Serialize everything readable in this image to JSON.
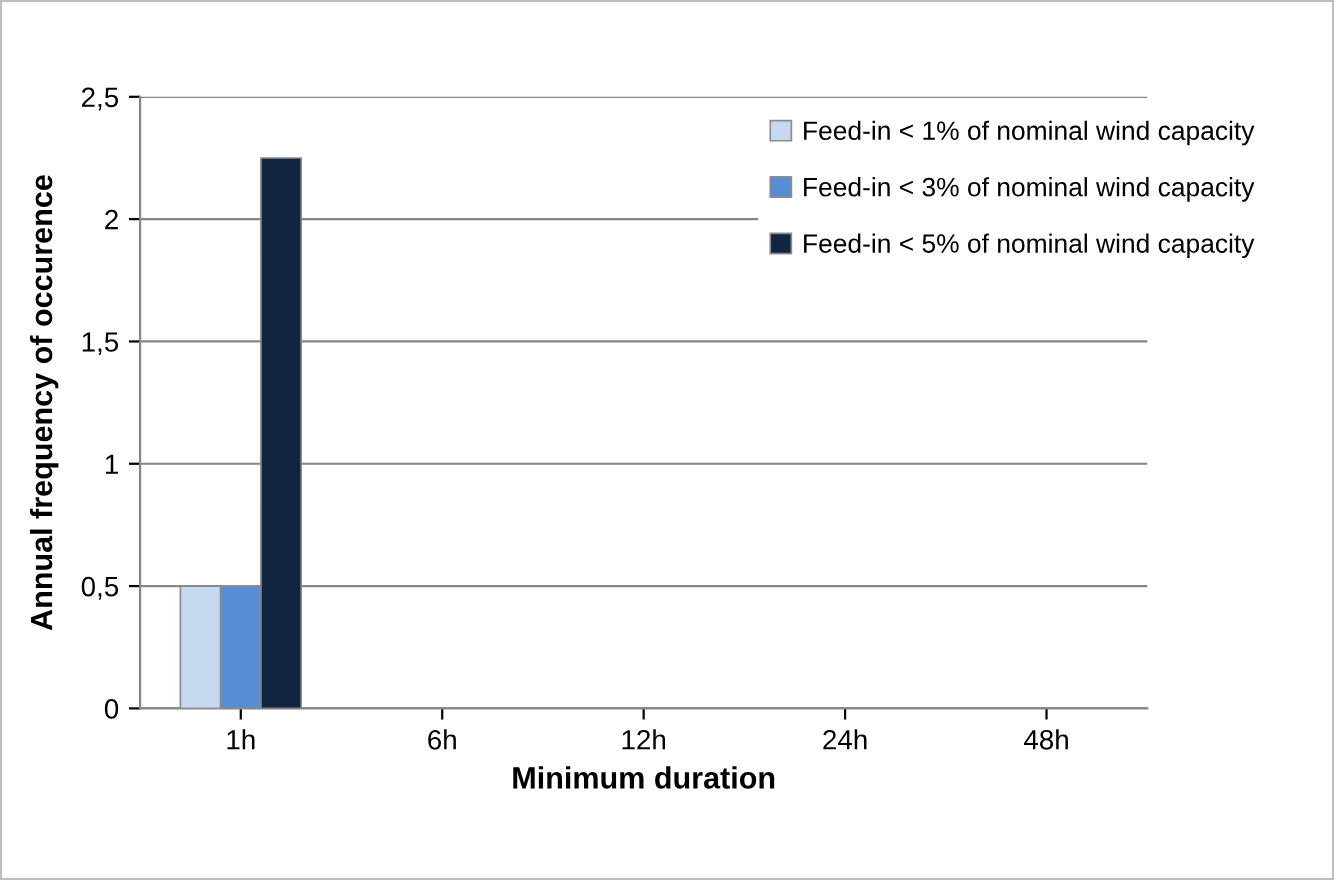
{
  "chart_data": {
    "type": "bar",
    "xlabel": "Minimum duration",
    "ylabel": "Annual frequency of occurence",
    "categories": [
      "1h",
      "6h",
      "12h",
      "24h",
      "48h"
    ],
    "series": [
      {
        "name": "Feed-in < 1% of nominal wind capacity",
        "color": "#c6d9f1",
        "values": [
          0.5,
          0,
          0,
          0,
          0
        ]
      },
      {
        "name": "Feed-in < 3% of nominal wind capacity",
        "color": "#558ed5",
        "values": [
          0.5,
          0,
          0,
          0,
          0
        ]
      },
      {
        "name": "Feed-in < 5% of nominal wind capacity",
        "color": "#10253f",
        "values": [
          2.25,
          0,
          0,
          0,
          0
        ]
      }
    ],
    "ylim": [
      0,
      2.5
    ],
    "yticks": [
      0,
      {
        "value": 0.5,
        "label": "0,5"
      },
      1,
      {
        "value": 1.5,
        "label": "1,5"
      },
      2,
      {
        "value": 2.5,
        "label": "2,5"
      }
    ],
    "grid": "y",
    "legend": "top right"
  }
}
